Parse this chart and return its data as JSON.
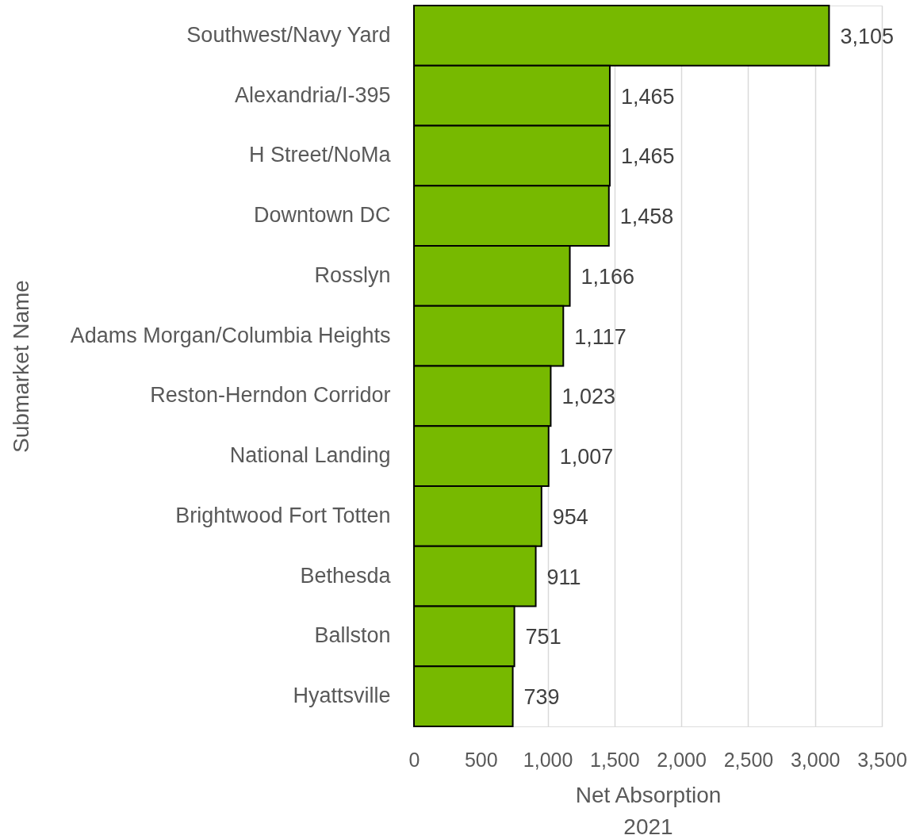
{
  "chart_data": {
    "type": "bar",
    "orientation": "horizontal",
    "categories": [
      "Southwest/Navy Yard",
      "Alexandria/I-395",
      "H Street/NoMa",
      "Downtown DC",
      "Rosslyn",
      "Adams Morgan/Columbia Heights",
      "Reston-Herndon Corridor",
      "National Landing",
      "Brightwood Fort Totten",
      "Bethesda",
      "Ballston",
      "Hyattsville"
    ],
    "values": [
      3105,
      1465,
      1465,
      1458,
      1166,
      1117,
      1023,
      1007,
      954,
      911,
      751,
      739
    ],
    "value_labels": [
      "3,105",
      "1,465",
      "1,465",
      "1,458",
      "1,166",
      "1,117",
      "1,023",
      "1,007",
      "954",
      "911",
      "751",
      "739"
    ],
    "color": "#77b900",
    "xlabel": "Net Absorption\n2021",
    "ylabel": "Submarket Name",
    "xlim": [
      0,
      3500
    ],
    "xticks": [
      0,
      500,
      {
        "value": 1000,
        "label": "1,000"
      },
      {
        "value": 1500,
        "label": "1,500"
      },
      {
        "value": 2000,
        "label": "2,000"
      },
      {
        "value": 2500,
        "label": "2,500"
      },
      {
        "value": 3000,
        "label": "3,000"
      },
      {
        "value": 3500,
        "label": "3,500"
      }
    ],
    "grid": "x"
  }
}
